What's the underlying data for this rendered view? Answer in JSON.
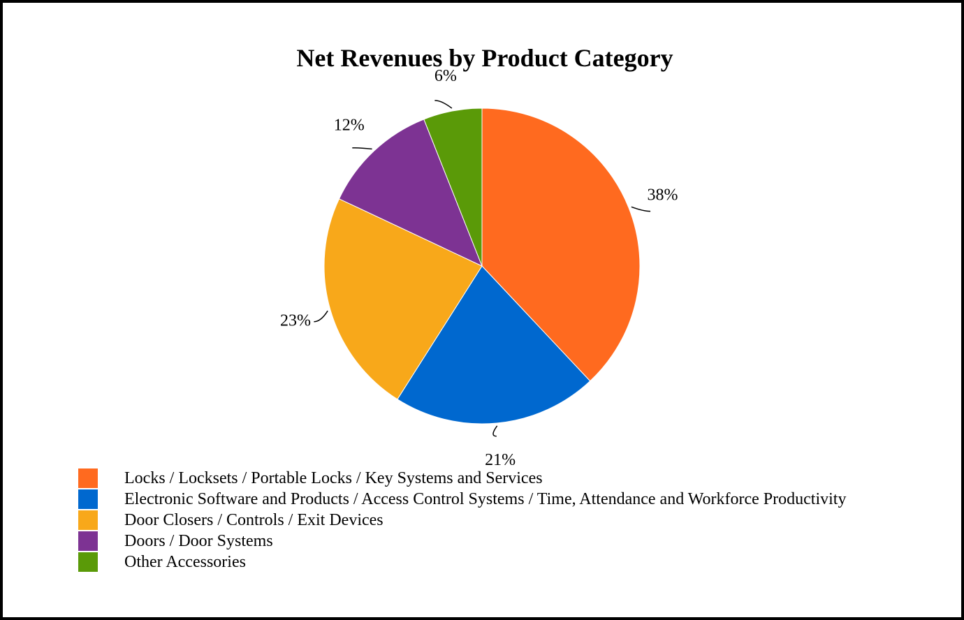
{
  "chart_data": {
    "type": "pie",
    "title": "Net Revenues by Product Category",
    "slices": [
      {
        "label": "Locks / Locksets / Portable Locks / Key Systems and Services",
        "value": 38,
        "display": "38%",
        "color": "#ff6a1f"
      },
      {
        "label": "Electronic Software and Products / Access Control Systems / Time, Attendance and Workforce Productivity",
        "value": 21,
        "display": "21%",
        "color": "#0068cf"
      },
      {
        "label": "Door Closers / Controls / Exit Devices",
        "value": 23,
        "display": "23%",
        "color": "#f8a81a"
      },
      {
        "label": "Doors / Door Systems",
        "value": 12,
        "display": "12%",
        "color": "#7d3393"
      },
      {
        "label": "Other Accessories",
        "value": 6,
        "display": "6%",
        "color": "#5a9a08"
      }
    ],
    "legend_position": "bottom-left",
    "start_angle": "top",
    "direction": "clockwise"
  }
}
